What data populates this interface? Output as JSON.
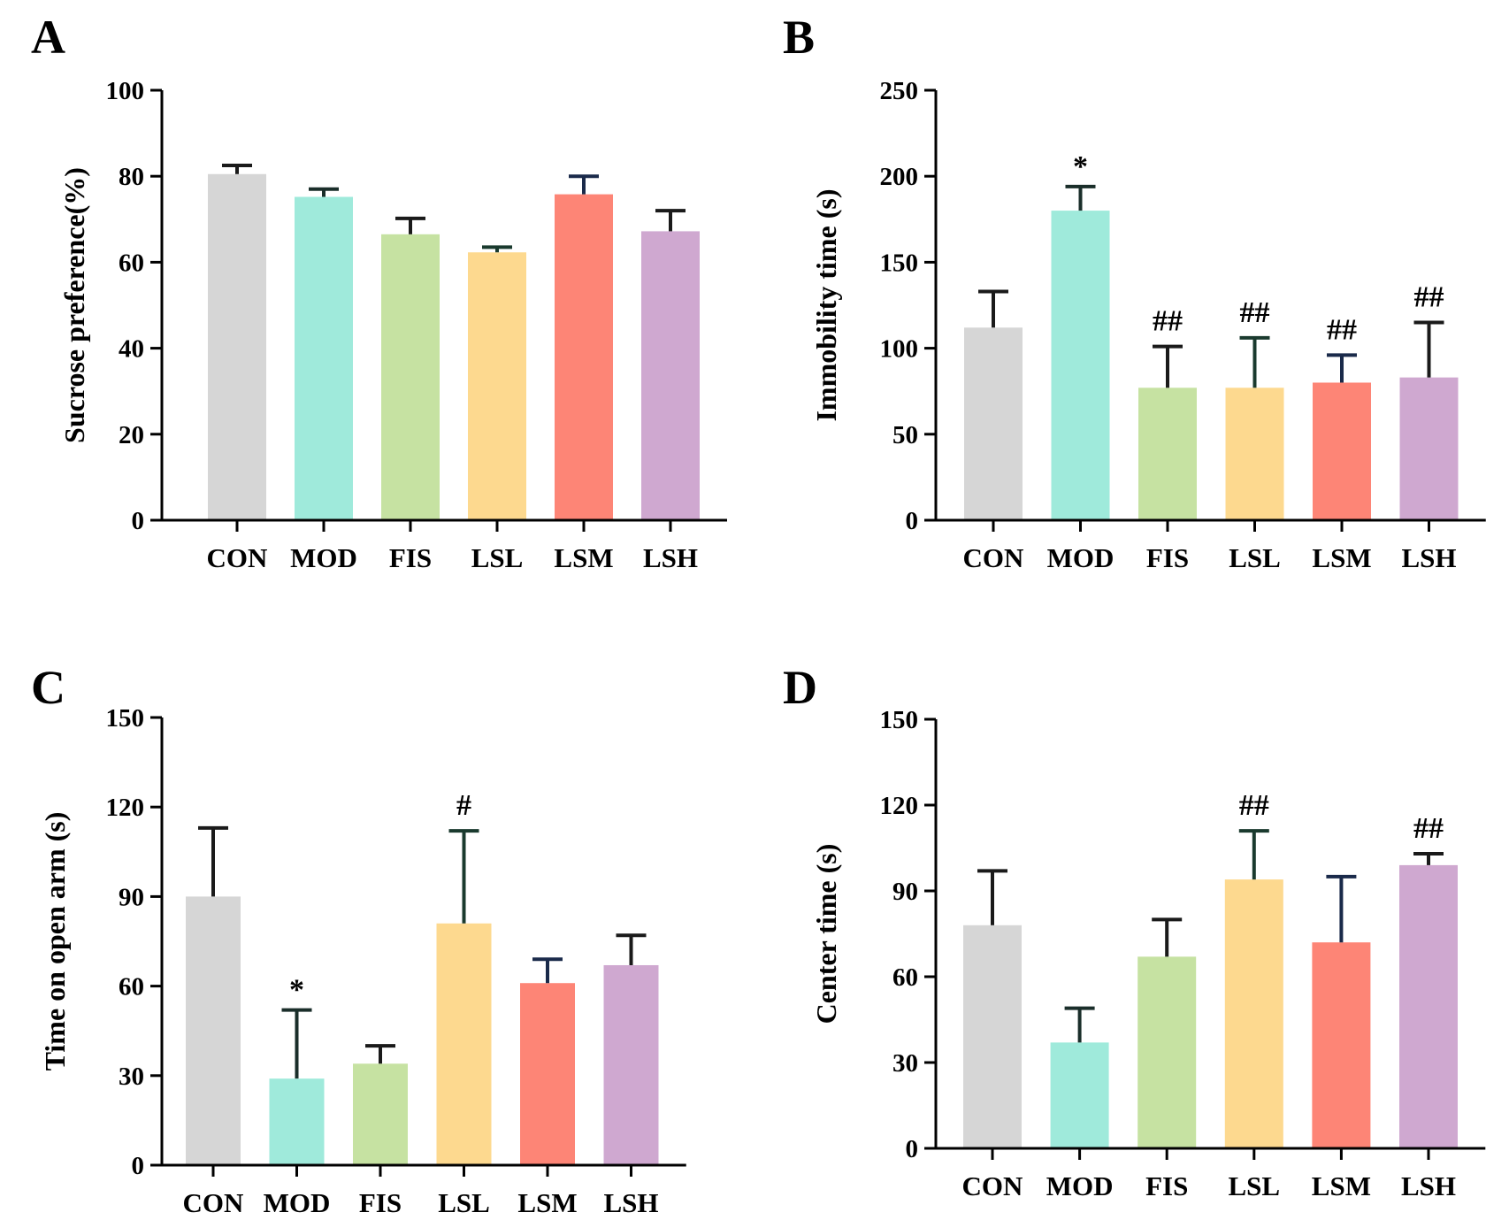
{
  "figure": {
    "panels": [
      "A",
      "B",
      "C",
      "D"
    ]
  },
  "chart_data": [
    {
      "panel": "A",
      "type": "bar",
      "title": "",
      "xlabel": "",
      "ylabel": "Sucrose preference(%)",
      "ylim": [
        0,
        100
      ],
      "yticks": [
        0,
        20,
        40,
        60,
        80,
        100
      ],
      "categories": [
        "CON",
        "MOD",
        "FIS",
        "LSL",
        "LSM",
        "LSH"
      ],
      "values": [
        80.5,
        75.2,
        66.5,
        62.3,
        75.8,
        67.2
      ],
      "errors": [
        2.0,
        1.8,
        3.7,
        1.2,
        4.2,
        4.8
      ],
      "significance": [
        "",
        "",
        "",
        "",
        "",
        ""
      ],
      "colors": [
        "#d6d6d6",
        "#9feadb",
        "#c6e2a2",
        "#fdd98f",
        "#fd8576",
        "#cfa8d0"
      ],
      "error_colors": [
        "#1a1a1a",
        "#1a2e2a",
        "#1a1a1a",
        "#1a3a2e",
        "#1a2a4a",
        "#1a1a1a"
      ]
    },
    {
      "panel": "B",
      "type": "bar",
      "title": "",
      "xlabel": "",
      "ylabel": "Immobility time (s)",
      "ylim": [
        0,
        250
      ],
      "yticks": [
        0,
        50,
        100,
        150,
        200,
        250
      ],
      "categories": [
        "CON",
        "MOD",
        "FIS",
        "LSL",
        "LSM",
        "LSH"
      ],
      "values": [
        112,
        180,
        77,
        77,
        80,
        83
      ],
      "errors": [
        21,
        14,
        24,
        29,
        16,
        32
      ],
      "significance": [
        "",
        "*",
        "##",
        "##",
        "##",
        "##"
      ],
      "colors": [
        "#d6d6d6",
        "#9feadb",
        "#c6e2a2",
        "#fdd98f",
        "#fd8576",
        "#cfa8d0"
      ],
      "error_colors": [
        "#1a1a1a",
        "#1a2e2a",
        "#1a1a1a",
        "#1a3a2e",
        "#1a2a4a",
        "#1a1a1a"
      ]
    },
    {
      "panel": "C",
      "type": "bar",
      "title": "",
      "xlabel": "",
      "ylabel": "Time on open arm (s)",
      "ylim": [
        0,
        150
      ],
      "yticks": [
        0,
        30,
        60,
        90,
        120,
        150
      ],
      "categories": [
        "CON",
        "MOD",
        "FIS",
        "LSL",
        "LSM",
        "LSH"
      ],
      "values": [
        90,
        29,
        34,
        81,
        61,
        67
      ],
      "errors": [
        23,
        23,
        6,
        31,
        8,
        10
      ],
      "significance": [
        "",
        "*",
        "",
        "#",
        "",
        ""
      ],
      "colors": [
        "#d6d6d6",
        "#9feadb",
        "#c6e2a2",
        "#fdd98f",
        "#fd8576",
        "#cfa8d0"
      ],
      "error_colors": [
        "#1a1a1a",
        "#1a2e2a",
        "#1a1a1a",
        "#1a3a2e",
        "#1a2a4a",
        "#1a1a1a"
      ]
    },
    {
      "panel": "D",
      "type": "bar",
      "title": "",
      "xlabel": "",
      "ylabel": "Center time (s)",
      "ylim": [
        0,
        150
      ],
      "yticks": [
        0,
        30,
        60,
        90,
        120,
        150
      ],
      "categories": [
        "CON",
        "MOD",
        "FIS",
        "LSL",
        "LSM",
        "LSH"
      ],
      "values": [
        78,
        37,
        67,
        94,
        72,
        99
      ],
      "errors": [
        19,
        12,
        13,
        17,
        23,
        4
      ],
      "significance": [
        "",
        "",
        "",
        "##",
        "",
        "##"
      ],
      "colors": [
        "#d6d6d6",
        "#9feadb",
        "#c6e2a2",
        "#fdd98f",
        "#fd8576",
        "#cfa8d0"
      ],
      "error_colors": [
        "#1a1a1a",
        "#1a2e2a",
        "#1a1a1a",
        "#1a3a2e",
        "#1a2a4a",
        "#1a1a1a"
      ]
    }
  ]
}
